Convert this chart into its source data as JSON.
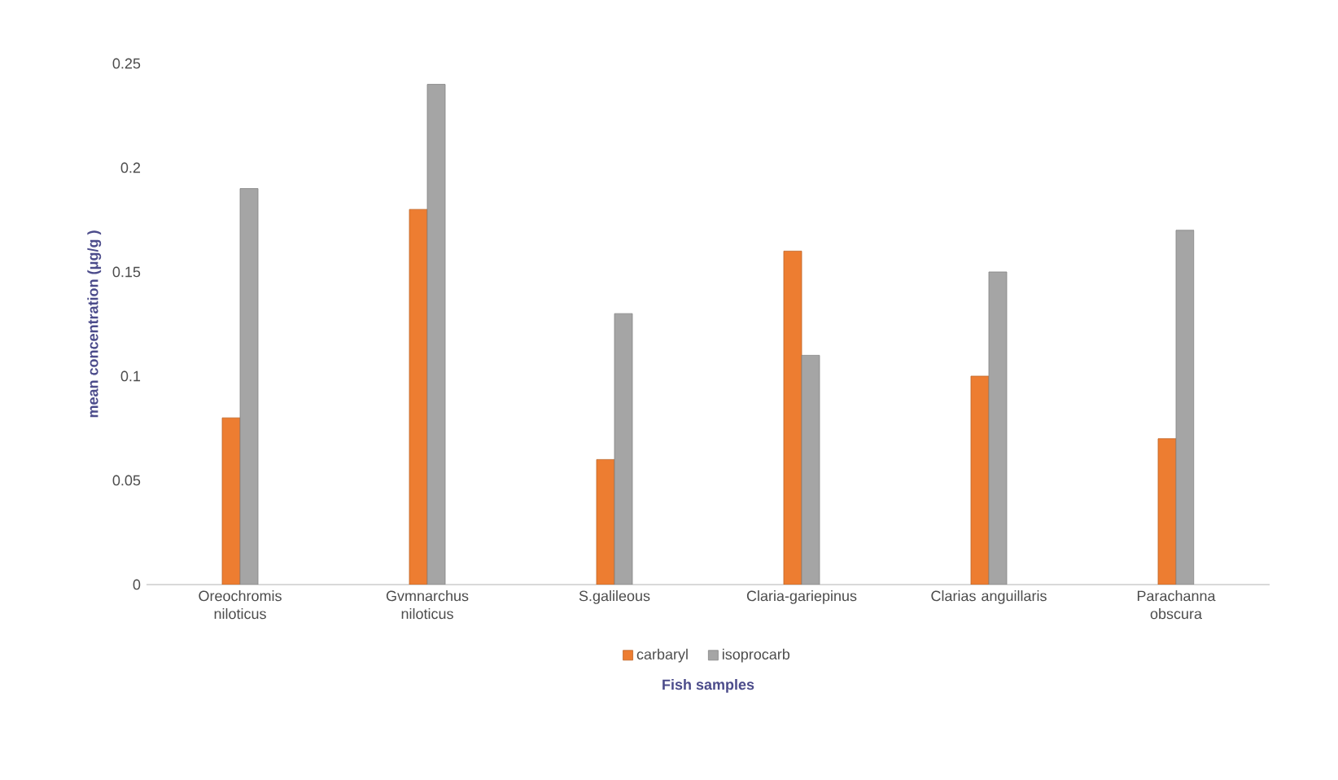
{
  "chart_data": {
    "type": "bar",
    "xlabel": "Fish samples",
    "ylabel": "mean concentration  (μg/g )",
    "categories": [
      "Oreochromis niloticus",
      "Gvmnarchus niloticus",
      "S.galileous",
      "Claria-gariepinus",
      "Clarias anguillaris",
      "Parachanna obscura"
    ],
    "series": [
      {
        "name": "carbaryl",
        "color": "#ed7d31",
        "values": [
          0.08,
          0.18,
          0.06,
          0.16,
          0.1,
          0.07
        ]
      },
      {
        "name": "isoprocarb",
        "color": "#a5a5a5",
        "values": [
          0.19,
          0.24,
          0.13,
          0.11,
          0.15,
          0.17
        ]
      }
    ],
    "ylim": [
      0,
      0.25
    ],
    "yticks": [
      0,
      0.05,
      0.1,
      0.15,
      0.2,
      0.25
    ],
    "grid": false,
    "legend": "bottom"
  }
}
